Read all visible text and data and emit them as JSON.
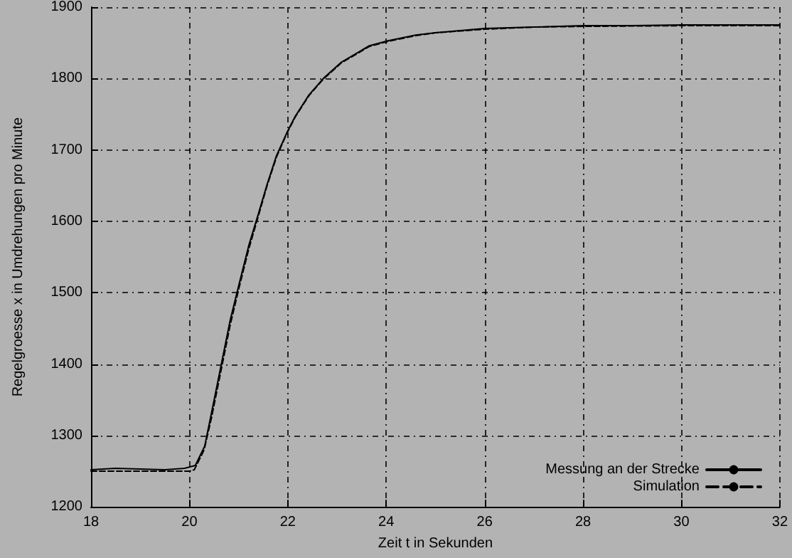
{
  "chart_data": {
    "type": "line",
    "xlabel": "Zeit t in Sekunden",
    "ylabel": "Regelgroesse x in Umdrehungen pro Minute",
    "xlim": [
      18,
      32
    ],
    "ylim": [
      1200,
      1900
    ],
    "xticks": [
      18,
      20,
      22,
      24,
      26,
      28,
      30,
      32
    ],
    "yticks": [
      1200,
      1300,
      1400,
      1500,
      1600,
      1700,
      1800,
      1900
    ],
    "grid": true,
    "legend": "bottom right",
    "marker": "none",
    "series": [
      {
        "name": "Messung an der Strecke",
        "color": "#000000",
        "line_style": "solid",
        "x": [
          18,
          18.5,
          19,
          19.5,
          19.9,
          20.12,
          20.31,
          20.45,
          20.64,
          20.83,
          21.02,
          21.21,
          21.4,
          21.58,
          21.77,
          21.98,
          22.15,
          22.43,
          22.72,
          23.09,
          23.66,
          24.04,
          24.6,
          25,
          25.5,
          26,
          27,
          28,
          29,
          30,
          31,
          32
        ],
        "values": [
          1252,
          1254,
          1253,
          1252,
          1254,
          1258,
          1285,
          1332,
          1397,
          1462,
          1515,
          1567,
          1610,
          1652,
          1692,
          1724,
          1747,
          1777,
          1800,
          1823,
          1846,
          1853,
          1861,
          1864,
          1867,
          1870,
          1872,
          1874,
          1874,
          1875,
          1875,
          1875
        ]
      },
      {
        "name": "Simulation",
        "color": "#000000",
        "line_style": "dashed",
        "x": [
          18,
          19,
          20,
          20.1,
          20.3,
          20.45,
          20.64,
          20.83,
          21.02,
          21.21,
          21.4,
          21.58,
          21.77,
          21.98,
          22.15,
          22.43,
          22.72,
          23.09,
          23.66,
          24.04,
          24.6,
          25,
          26,
          27,
          28,
          30,
          32
        ],
        "values": [
          1250,
          1250,
          1250,
          1252,
          1280,
          1325,
          1390,
          1455,
          1510,
          1562,
          1607,
          1650,
          1690,
          1723,
          1746,
          1776,
          1799,
          1822,
          1845,
          1852,
          1860,
          1864,
          1869,
          1872,
          1873,
          1874,
          1874
        ]
      }
    ]
  }
}
